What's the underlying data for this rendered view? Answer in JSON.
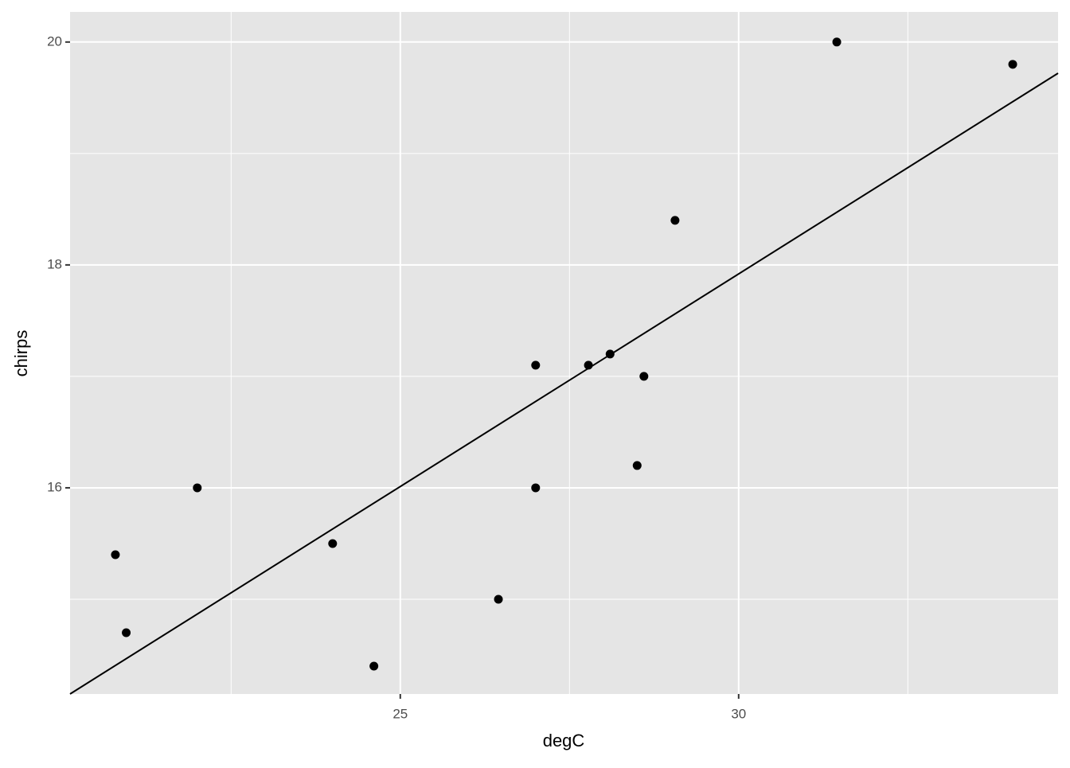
{
  "chart_data": {
    "type": "scatter",
    "xlabel": "degC",
    "ylabel": "chirps",
    "series": [
      {
        "color": "#000000",
        "x": [
          20.79,
          20.95,
          22.0,
          24.0,
          24.61,
          26.45,
          27.0,
          27.0,
          27.78,
          28.1,
          28.5,
          28.6,
          29.06,
          31.45,
          34.05
        ],
        "values": [
          15.4,
          14.7,
          16.0,
          15.5,
          14.4,
          15.0,
          17.1,
          16.0,
          17.1,
          17.2,
          16.2,
          17.0,
          18.4,
          20.0,
          19.8
        ]
      }
    ],
    "fit": {
      "color": "#000000",
      "x": [
        20.12,
        34.72
      ],
      "values": [
        14.15,
        19.72
      ]
    },
    "xlim": [
      20.12,
      34.72
    ],
    "ylim": [
      14.15,
      20.27
    ],
    "xticks": [
      25,
      30
    ],
    "yticks": [
      16,
      18,
      20
    ],
    "x_minor_grid": [
      22.5,
      27.5,
      32.5
    ],
    "y_minor_grid": [
      15,
      17,
      19
    ],
    "grid": true,
    "panel_color": "#e5e5e5"
  }
}
